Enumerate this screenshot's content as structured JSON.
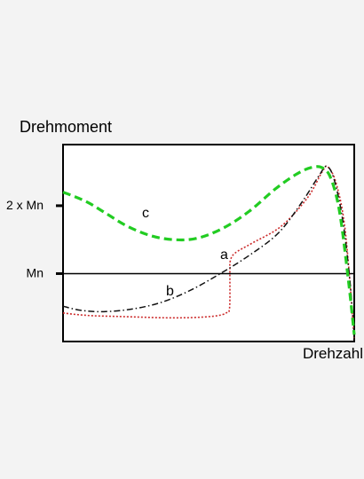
{
  "chart_data": {
    "type": "line",
    "xlabel": "Drehzahl",
    "ylabel": "Drehmoment",
    "xlim": [
      0,
      100
    ],
    "ylim": [
      0,
      2.9
    ],
    "yticks": [
      {
        "value": 2,
        "label": "2 x Mn"
      },
      {
        "value": 1,
        "label": "Mn"
      }
    ],
    "reference_line": {
      "value": 1
    },
    "grid": false,
    "legend": "none",
    "series": [
      {
        "id": "a",
        "label": "a",
        "color": "#cc2b2b",
        "dash": "dotted",
        "points": [
          [
            0,
            0.42
          ],
          [
            4,
            0.4
          ],
          [
            10,
            0.38
          ],
          [
            18,
            0.37
          ],
          [
            26,
            0.36
          ],
          [
            34,
            0.35
          ],
          [
            42,
            0.35
          ],
          [
            48,
            0.36
          ],
          [
            53,
            0.38
          ],
          [
            56,
            0.42
          ],
          [
            57.2,
            0.5
          ],
          [
            57.3,
            1.05
          ],
          [
            57.4,
            1.18
          ],
          [
            59,
            1.3
          ],
          [
            65,
            1.45
          ],
          [
            75,
            1.7
          ],
          [
            84,
            2.12
          ],
          [
            89,
            2.5
          ],
          [
            91,
            2.57
          ],
          [
            94,
            2.3
          ],
          [
            97,
            1.6
          ],
          [
            100,
            0.05
          ]
        ]
      },
      {
        "id": "b",
        "label": "b",
        "color": "#111111",
        "dash": "dashdot",
        "points": [
          [
            0,
            0.52
          ],
          [
            6,
            0.46
          ],
          [
            14,
            0.44
          ],
          [
            24,
            0.48
          ],
          [
            34,
            0.58
          ],
          [
            44,
            0.76
          ],
          [
            54,
            1.0
          ],
          [
            64,
            1.27
          ],
          [
            74,
            1.6
          ],
          [
            82,
            2.05
          ],
          [
            88,
            2.45
          ],
          [
            90.5,
            2.58
          ],
          [
            93,
            2.4
          ],
          [
            96,
            1.8
          ],
          [
            98.5,
            0.9
          ],
          [
            100,
            0.06
          ]
        ]
      },
      {
        "id": "c",
        "label": "c",
        "color": "#22cc22",
        "dash": "dashed",
        "points": [
          [
            0,
            2.2
          ],
          [
            8,
            2.06
          ],
          [
            15,
            1.88
          ],
          [
            22,
            1.7
          ],
          [
            30,
            1.56
          ],
          [
            38,
            1.5
          ],
          [
            46,
            1.52
          ],
          [
            55,
            1.67
          ],
          [
            64,
            1.92
          ],
          [
            73,
            2.25
          ],
          [
            80,
            2.46
          ],
          [
            85,
            2.56
          ],
          [
            89,
            2.56
          ],
          [
            92,
            2.4
          ],
          [
            95,
            1.9
          ],
          [
            98,
            0.9
          ],
          [
            100,
            0.1
          ]
        ]
      }
    ]
  }
}
